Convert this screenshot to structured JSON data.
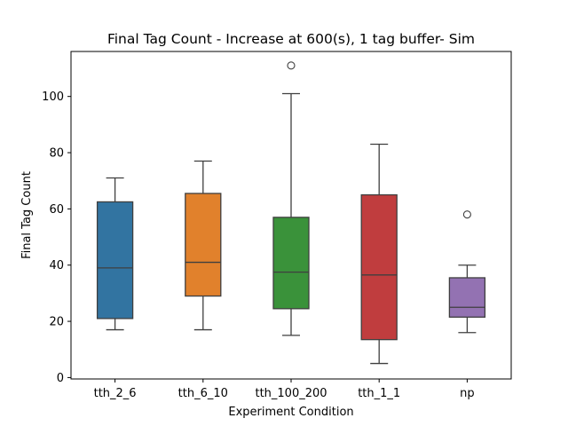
{
  "chart_data": {
    "type": "box",
    "title": "Final Tag Count - Increase at 600(s), 1 tag buffer- Sim",
    "xlabel": "Experiment Condition",
    "ylabel": "Final Tag Count",
    "ylim": [
      0,
      116
    ],
    "yticks": [
      0,
      20,
      40,
      60,
      80,
      100
    ],
    "categories": [
      "tth_2_6",
      "tth_6_10",
      "tth_100_200",
      "tth_1_1",
      "np"
    ],
    "boxes": [
      {
        "category": "tth_2_6",
        "color": "#3274a1",
        "whisker_low": 17,
        "q1": 21,
        "median": 39,
        "q3": 62.5,
        "whisker_high": 71,
        "outliers": []
      },
      {
        "category": "tth_6_10",
        "color": "#e1812c",
        "whisker_low": 17,
        "q1": 29,
        "median": 41,
        "q3": 65.5,
        "whisker_high": 77,
        "outliers": []
      },
      {
        "category": "tth_100_200",
        "color": "#3a923a",
        "whisker_low": 15,
        "q1": 24.5,
        "median": 37.5,
        "q3": 57,
        "whisker_high": 101,
        "outliers": [
          111
        ]
      },
      {
        "category": "tth_1_1",
        "color": "#c03d3e",
        "whisker_low": 5,
        "q1": 13.5,
        "median": 36.5,
        "q3": 65,
        "whisker_high": 83,
        "outliers": []
      },
      {
        "category": "np",
        "color": "#9372b2",
        "whisker_low": 16,
        "q1": 21.5,
        "median": 25,
        "q3": 35.5,
        "whisker_high": 40,
        "outliers": [
          58
        ]
      }
    ],
    "grid": false,
    "legend": "none"
  }
}
